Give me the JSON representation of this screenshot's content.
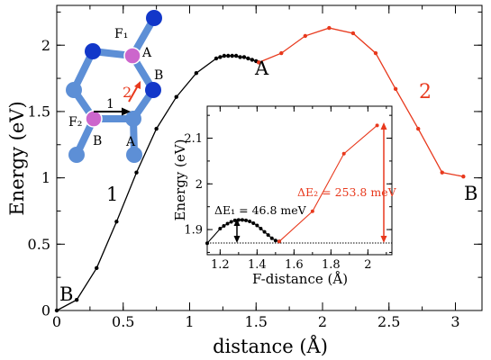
{
  "chart_data": [
    {
      "type": "line",
      "xlabel": "distance (Å)",
      "ylabel": "Energy (eV)",
      "xlim": [
        0,
        3.2
      ],
      "ylim": [
        0,
        2.3
      ],
      "xticks": [
        "0",
        "0.5",
        "1",
        "1.5",
        "2",
        "2.5",
        "3"
      ],
      "yticks": [
        "0",
        "0.5",
        "1",
        "1.5",
        "2"
      ],
      "grid": false,
      "series": [
        {
          "name": "1",
          "color": "#000000",
          "x": [
            0,
            0.15,
            0.3,
            0.45,
            0.6,
            0.75,
            0.9,
            1.05,
            1.2,
            1.23,
            1.26,
            1.29,
            1.32,
            1.35,
            1.38,
            1.41,
            1.44,
            1.47,
            1.5,
            1.52
          ],
          "y": [
            0,
            0.08,
            0.32,
            0.67,
            1.04,
            1.37,
            1.61,
            1.79,
            1.9,
            1.91,
            1.92,
            1.92,
            1.92,
            1.92,
            1.91,
            1.91,
            1.9,
            1.89,
            1.88,
            1.87
          ]
        },
        {
          "name": "2",
          "color": "#e8391d",
          "x": [
            1.52,
            1.69,
            1.87,
            2.05,
            2.23,
            2.4,
            2.55,
            2.72,
            2.9,
            3.06
          ],
          "y": [
            1.87,
            1.94,
            2.07,
            2.13,
            2.09,
            1.94,
            1.67,
            1.37,
            1.04,
            1.01
          ]
        }
      ],
      "annotations": [
        "A",
        "B",
        "1",
        "2"
      ]
    },
    {
      "type": "line",
      "xlabel": "F-distance (Å)",
      "ylabel": "Energy (eV)",
      "xlim": [
        1.13,
        2.13
      ],
      "ylim": [
        1.845,
        2.17
      ],
      "xticks": [
        "1.2",
        "1.4",
        "1.6",
        "1.8",
        "2"
      ],
      "yticks": [
        "1.9",
        "2",
        "2.1"
      ],
      "series": [
        {
          "name": "1",
          "color": "#000000",
          "x": [
            1.13,
            1.2,
            1.22,
            1.24,
            1.26,
            1.28,
            1.3,
            1.32,
            1.34,
            1.36,
            1.38,
            1.4,
            1.42,
            1.44,
            1.46,
            1.48,
            1.5,
            1.52
          ],
          "y": [
            1.87,
            1.902,
            1.908,
            1.913,
            1.917,
            1.92,
            1.921,
            1.921,
            1.92,
            1.918,
            1.914,
            1.909,
            1.902,
            1.895,
            1.888,
            1.881,
            1.876,
            1.874
          ]
        },
        {
          "name": "2",
          "color": "#e8391d",
          "x": [
            1.52,
            1.7,
            1.87,
            2.05
          ],
          "y": [
            1.874,
            1.94,
            2.066,
            2.128
          ]
        }
      ],
      "annotations": [
        "ΔE₁ = 46.8 meV",
        "ΔE₂ = 253.8 meV"
      ]
    }
  ],
  "labels": {
    "point_a": "A",
    "point_b_start": "B",
    "point_b_end": "B",
    "path_1": "1",
    "path_2": "2",
    "inset_de1": "ΔE₁ = 46.8 meV",
    "inset_de2": "ΔE₂ = 253.8 meV",
    "mol_f1": "F₁",
    "mol_a1": "A",
    "mol_b1": "B",
    "mol_f2": "F₂",
    "mol_b2": "B",
    "mol_a2": "A",
    "mol_arrow1": "1",
    "mol_arrow2": "2"
  },
  "colors": {
    "path1": "#000000",
    "path2": "#e8391d",
    "atom_dark": "#1237c9",
    "atom_light": "#5d8fd6",
    "atom_fluorine": "#cc66cc"
  }
}
